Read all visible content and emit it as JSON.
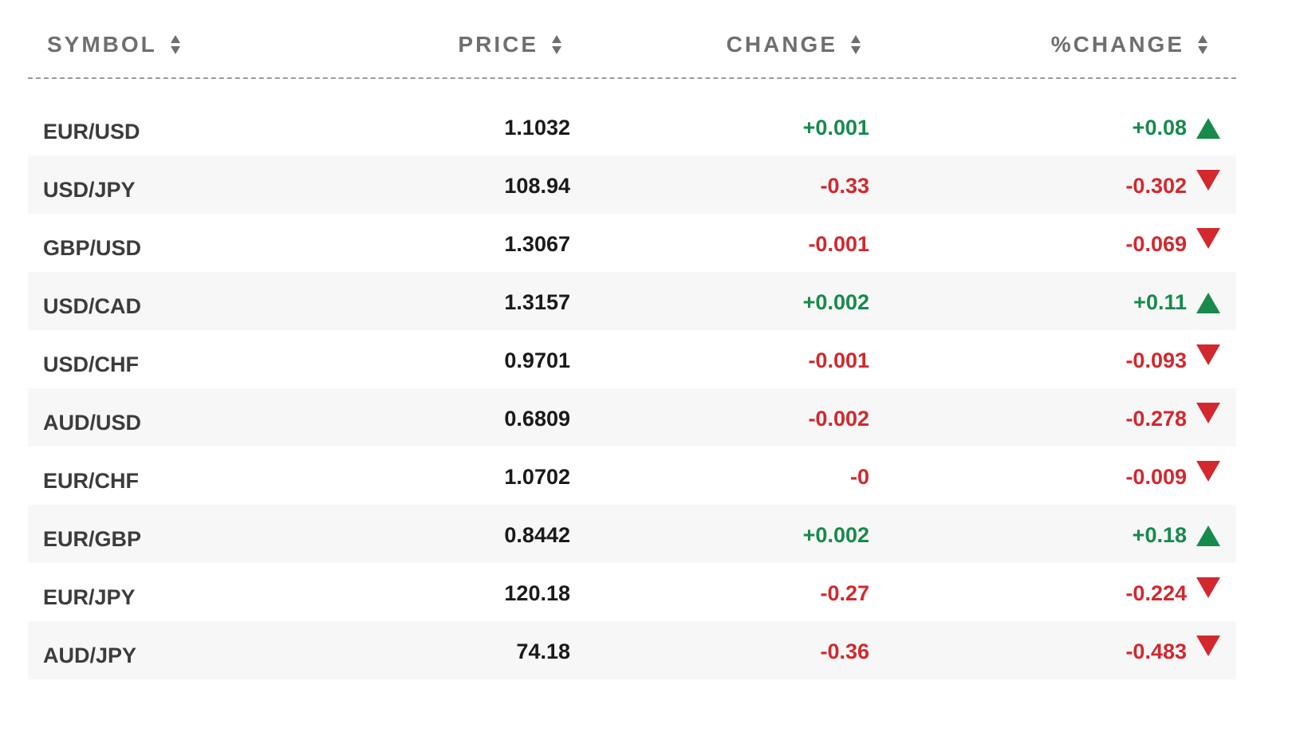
{
  "columns": {
    "symbol": "SYMBOL",
    "price": "PRICE",
    "change": "CHANGE",
    "pct_change": "%CHANGE"
  },
  "colors": {
    "positive": "#178a4c",
    "negative": "#d2282e"
  },
  "rows": [
    {
      "symbol": "EUR/USD",
      "price": "1.1032",
      "change": "+0.001",
      "pct_change": "+0.08",
      "direction": "up"
    },
    {
      "symbol": "USD/JPY",
      "price": "108.94",
      "change": "-0.33",
      "pct_change": "-0.302",
      "direction": "down"
    },
    {
      "symbol": "GBP/USD",
      "price": "1.3067",
      "change": "-0.001",
      "pct_change": "-0.069",
      "direction": "down"
    },
    {
      "symbol": "USD/CAD",
      "price": "1.3157",
      "change": "+0.002",
      "pct_change": "+0.11",
      "direction": "up"
    },
    {
      "symbol": "USD/CHF",
      "price": "0.9701",
      "change": "-0.001",
      "pct_change": "-0.093",
      "direction": "down"
    },
    {
      "symbol": "AUD/USD",
      "price": "0.6809",
      "change": "-0.002",
      "pct_change": "-0.278",
      "direction": "down"
    },
    {
      "symbol": "EUR/CHF",
      "price": "1.0702",
      "change": "-0",
      "pct_change": "-0.009",
      "direction": "down"
    },
    {
      "symbol": "EUR/GBP",
      "price": "0.8442",
      "change": "+0.002",
      "pct_change": "+0.18",
      "direction": "up"
    },
    {
      "symbol": "EUR/JPY",
      "price": "120.18",
      "change": "-0.27",
      "pct_change": "-0.224",
      "direction": "down"
    },
    {
      "symbol": "AUD/JPY",
      "price": "74.18",
      "change": "-0.36",
      "pct_change": "-0.483",
      "direction": "down"
    }
  ]
}
